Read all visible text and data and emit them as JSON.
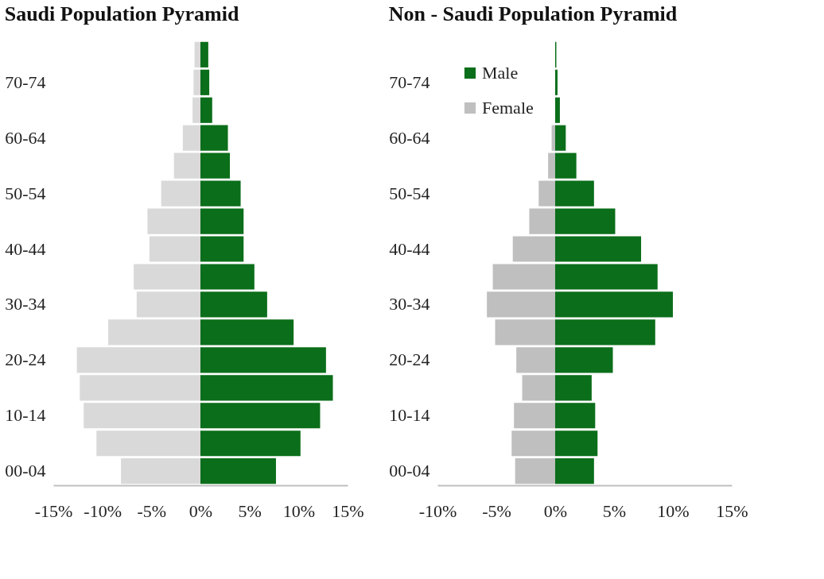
{
  "chart_data": [
    {
      "type": "bar",
      "title": "Saudi Population Pyramid",
      "orientation": "horizontal",
      "categories": [
        null,
        "70-74",
        null,
        "60-64",
        null,
        "50-54",
        null,
        "40-44",
        null,
        "30-34",
        null,
        "20-24",
        null,
        "10-14",
        null,
        "00-04"
      ],
      "series": [
        {
          "color": "#0b6e1a",
          "values": [
            0.8,
            0.9,
            1.2,
            2.8,
            3.0,
            4.1,
            4.4,
            4.4,
            5.5,
            6.8,
            9.5,
            12.8,
            13.5,
            12.2,
            10.2,
            7.7
          ]
        },
        {
          "color": "#d9d9d9",
          "values": [
            -0.6,
            -0.7,
            -0.8,
            -1.8,
            -2.7,
            -4.0,
            -5.4,
            -5.2,
            -6.8,
            -6.5,
            -9.4,
            -12.6,
            -12.3,
            -11.9,
            -10.6,
            -8.1
          ]
        }
      ],
      "xlim": [
        -15,
        15
      ],
      "xticks": [
        {
          "value": -15,
          "label": "-15%"
        },
        {
          "value": -10,
          "label": "-10%"
        },
        {
          "value": -5,
          "label": "-5%"
        },
        {
          "value": 0,
          "label": "0%"
        },
        {
          "value": 5,
          "label": "5%"
        },
        {
          "value": 10,
          "label": "10%"
        },
        {
          "value": 15,
          "label": "15%"
        }
      ],
      "grid": false,
      "legend": false,
      "stacked": true
    },
    {
      "type": "bar",
      "title": "Non - Saudi Population Pyramid",
      "orientation": "horizontal",
      "categories": [
        null,
        "70-74",
        null,
        "60-64",
        null,
        "50-54",
        null,
        "40-44",
        null,
        "30-34",
        null,
        "20-24",
        null,
        "10-14",
        null,
        "00-04"
      ],
      "series": [
        {
          "name": "Male",
          "color": "#0b6e1a",
          "values": [
            0.1,
            0.2,
            0.4,
            0.9,
            1.8,
            3.3,
            5.1,
            7.3,
            8.7,
            10.0,
            8.5,
            4.9,
            3.1,
            3.4,
            3.6,
            3.3
          ]
        },
        {
          "name": "Female",
          "color": "#bfbfbf",
          "values": [
            null,
            null,
            null,
            -0.3,
            -0.6,
            -1.4,
            -2.2,
            -3.6,
            -5.3,
            -5.8,
            -5.1,
            -3.3,
            -2.8,
            -3.5,
            -3.7,
            -3.4
          ]
        }
      ],
      "xlim": [
        -10,
        15
      ],
      "xticks": [
        {
          "value": -10,
          "label": "-10%"
        },
        {
          "value": -5,
          "label": "-5%"
        },
        {
          "value": 0,
          "label": "0%"
        },
        {
          "value": 5,
          "label": "5%"
        },
        {
          "value": 10,
          "label": "10%"
        },
        {
          "value": 15,
          "label": "15%"
        }
      ],
      "grid": false,
      "legend": "top left",
      "stacked": true
    }
  ]
}
